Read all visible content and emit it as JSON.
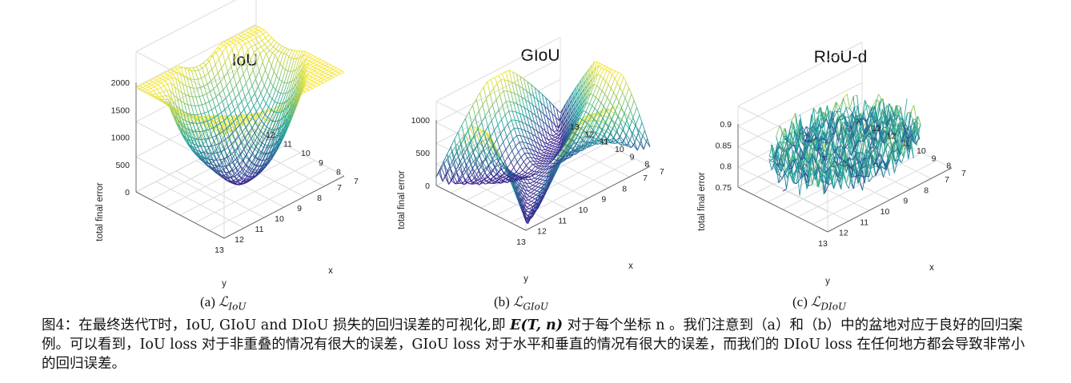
{
  "figure": {
    "panels": [
      {
        "title": "IoU",
        "subcaption_prefix": "(a)",
        "subcaption_math": "ℒ",
        "subcaption_sub": "IoU",
        "zlabel": "total final error",
        "xlabel": "x",
        "ylabel": "y",
        "zticks": [
          "0",
          "500",
          "1000",
          "1500",
          "2000"
        ],
        "yticks": [
          "13",
          "12",
          "11",
          "10",
          "9",
          "8",
          "7"
        ],
        "xticks": [
          "7",
          "8",
          "9",
          "10",
          "11",
          "12"
        ],
        "surface": "bowl"
      },
      {
        "title": "GIoU",
        "subcaption_prefix": "(b)",
        "subcaption_math": "ℒ",
        "subcaption_sub": "GIoU",
        "zlabel": "total final error",
        "xlabel": "x",
        "ylabel": "y",
        "zticks": [
          "0",
          "500",
          "1000"
        ],
        "yticks": [
          "13",
          "12",
          "11",
          "10",
          "9",
          "8",
          "7"
        ],
        "xticks": [
          "7",
          "8",
          "9",
          "10",
          "11",
          "12",
          "13"
        ],
        "surface": "saddle"
      },
      {
        "title": "RIoU-d",
        "subcaption_prefix": "(c)",
        "subcaption_math": "ℒ",
        "subcaption_sub": "DIoU",
        "zlabel": "total final error",
        "xlabel": "x",
        "ylabel": "y",
        "zticks": [
          "0.75",
          "0.8",
          "0.85",
          "0.9"
        ],
        "yticks": [
          "13",
          "12",
          "11",
          "10",
          "9",
          "8",
          "7"
        ],
        "xticks": [
          "7",
          "8",
          "9",
          "10",
          "11",
          "12",
          "13"
        ],
        "surface": "noisy-disc"
      }
    ],
    "caption": {
      "part1": "图4：在最终迭代T时，IoU, GIoU and DIoU 损失的回归误差的可视化,即 ",
      "math": "E(T, n)",
      "part2": " 对于每个坐标 n 。我们注意到（a）和（b）中的盆地对应于良好的回归案例。可以看到，IoU loss 对于非重叠的情况有很大的误差，GIoU loss 对于水平和垂直的情况有很大的误差，而我们的 DIoU loss 在任何地方都会导致非常小的回归误差。"
    },
    "colors": {
      "low": "#3b1f8f",
      "mid": "#21a6a0",
      "high": "#f5e52c",
      "axis": "#6b6b6b",
      "grid": "#dcdcdc"
    }
  }
}
